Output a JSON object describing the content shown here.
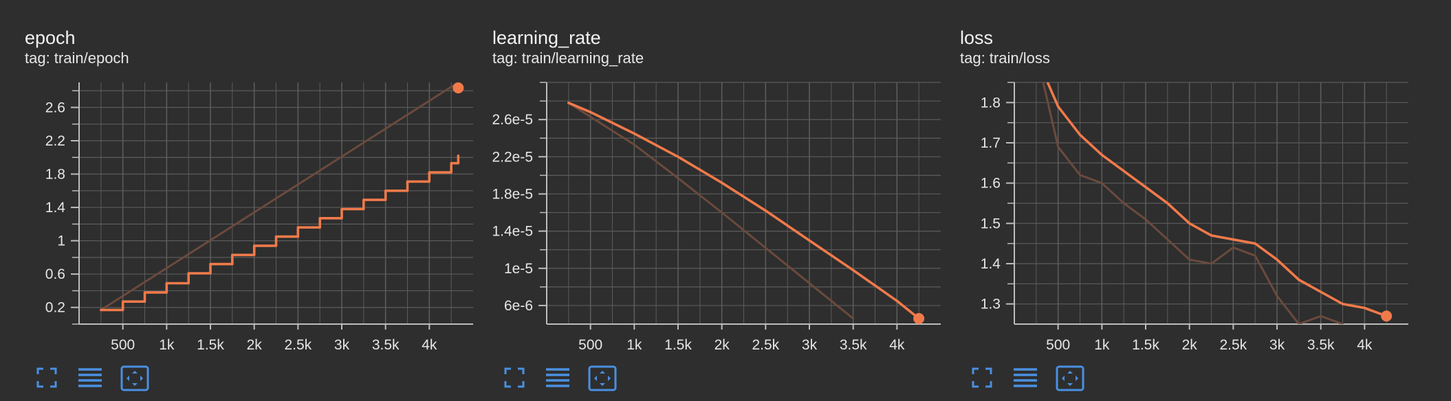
{
  "colors": {
    "accent": "#f07a4a",
    "raw": "#6b4a3d",
    "grid": "#5c5c5c",
    "axis": "#bdbdbd",
    "icon": "#4a90e2",
    "background": "#2e2e2e"
  },
  "icons": [
    "fullscreen-icon",
    "data-table-icon",
    "fit-domain-icon"
  ],
  "charts": [
    {
      "title": "epoch",
      "tag": "tag: train/epoch",
      "ytick_labels": [
        "0.2",
        "0.6",
        "1",
        "1.4",
        "1.8",
        "2.2",
        "2.6"
      ],
      "xtick_labels": [
        "500",
        "1k",
        "1.5k",
        "2k",
        "2.5k",
        "3k",
        "3.5k",
        "4k"
      ]
    },
    {
      "title": "learning_rate",
      "tag": "tag: train/learning_rate",
      "ytick_labels": [
        "6e-6",
        "1e-5",
        "1.4e-5",
        "1.8e-5",
        "2.2e-5",
        "2.6e-5"
      ],
      "xtick_labels": [
        "500",
        "1k",
        "1.5k",
        "2k",
        "2.5k",
        "3k",
        "3.5k",
        "4k"
      ]
    },
    {
      "title": "loss",
      "tag": "tag: train/loss",
      "ytick_labels": [
        "1.3",
        "1.4",
        "1.5",
        "1.6",
        "1.7",
        "1.8"
      ],
      "xtick_labels": [
        "500",
        "1k",
        "1.5k",
        "2k",
        "2.5k",
        "3k",
        "3.5k",
        "4k"
      ]
    }
  ],
  "chart_data": [
    {
      "type": "line",
      "title": "epoch",
      "subtitle": "tag: train/epoch",
      "xlabel": "",
      "ylabel": "",
      "xlim": [
        0,
        4500
      ],
      "ylim": [
        0,
        2.9
      ],
      "xticks": [
        500,
        1000,
        1500,
        2000,
        2500,
        3000,
        3500,
        4000
      ],
      "yticks": [
        0.2,
        0.6,
        1,
        1.4,
        1.8,
        2.2,
        2.6
      ],
      "grid": true,
      "series": [
        {
          "role": "raw",
          "x": [
            250,
            4330
          ],
          "y": [
            0.17,
            2.9
          ]
        },
        {
          "role": "smoothed",
          "step": true,
          "x": [
            250,
            500,
            750,
            1000,
            1250,
            1500,
            1750,
            2000,
            2250,
            2500,
            2750,
            3000,
            3250,
            3500,
            3750,
            4000,
            4250,
            4330
          ],
          "y": [
            0.17,
            0.27,
            0.38,
            0.49,
            0.61,
            0.72,
            0.83,
            0.94,
            1.05,
            1.16,
            1.27,
            1.38,
            1.49,
            1.6,
            1.71,
            1.82,
            1.93,
            2.02
          ]
        }
      ]
    },
    {
      "type": "line",
      "title": "learning_rate",
      "subtitle": "tag: train/learning_rate",
      "xlabel": "",
      "ylabel": "",
      "xlim": [
        0,
        4500
      ],
      "ylim": [
        4e-06,
        3e-05
      ],
      "xticks": [
        500,
        1000,
        1500,
        2000,
        2500,
        3000,
        3500,
        4000
      ],
      "yticks": [
        6e-06,
        1e-05,
        1.4e-05,
        1.8e-05,
        2.2e-05,
        2.6e-05
      ],
      "grid": true,
      "series": [
        {
          "role": "raw",
          "x": [
            250,
            1000,
            1500,
            2000,
            2500,
            3000,
            3500
          ],
          "y": [
            2.78e-05,
            2.33e-05,
            1.97e-05,
            1.6e-05,
            1.22e-05,
            8.4e-06,
            4.6e-06
          ]
        },
        {
          "role": "smoothed",
          "x": [
            250,
            500,
            1000,
            1500,
            2000,
            2500,
            3000,
            3500,
            4000,
            4250
          ],
          "y": [
            2.78e-05,
            2.68e-05,
            2.45e-05,
            2.2e-05,
            1.92e-05,
            1.62e-05,
            1.3e-05,
            9.8e-06,
            6.5e-06,
            4.6e-06
          ]
        }
      ]
    },
    {
      "type": "line",
      "title": "loss",
      "subtitle": "tag: train/loss",
      "xlabel": "",
      "ylabel": "",
      "xlim": [
        0,
        4500
      ],
      "ylim": [
        1.25,
        1.85
      ],
      "xticks": [
        500,
        1000,
        1500,
        2000,
        2500,
        3000,
        3500,
        4000
      ],
      "yticks": [
        1.3,
        1.4,
        1.5,
        1.6,
        1.7,
        1.8
      ],
      "grid": true,
      "series": [
        {
          "role": "raw",
          "x": [
            330,
            500,
            750,
            1000,
            1250,
            1500,
            2000,
            2250,
            2500,
            2750,
            3000,
            3250,
            3500,
            3750
          ],
          "y": [
            1.85,
            1.69,
            1.62,
            1.6,
            1.55,
            1.51,
            1.41,
            1.4,
            1.44,
            1.42,
            1.32,
            1.25,
            1.27,
            1.25
          ]
        },
        {
          "role": "smoothed",
          "x": [
            380,
            500,
            750,
            1000,
            1250,
            1500,
            1750,
            2000,
            2250,
            2500,
            2750,
            3000,
            3250,
            3500,
            3750,
            4000,
            4250
          ],
          "y": [
            1.85,
            1.79,
            1.72,
            1.67,
            1.63,
            1.59,
            1.55,
            1.5,
            1.47,
            1.46,
            1.45,
            1.41,
            1.36,
            1.33,
            1.3,
            1.29,
            1.27
          ]
        }
      ]
    }
  ]
}
